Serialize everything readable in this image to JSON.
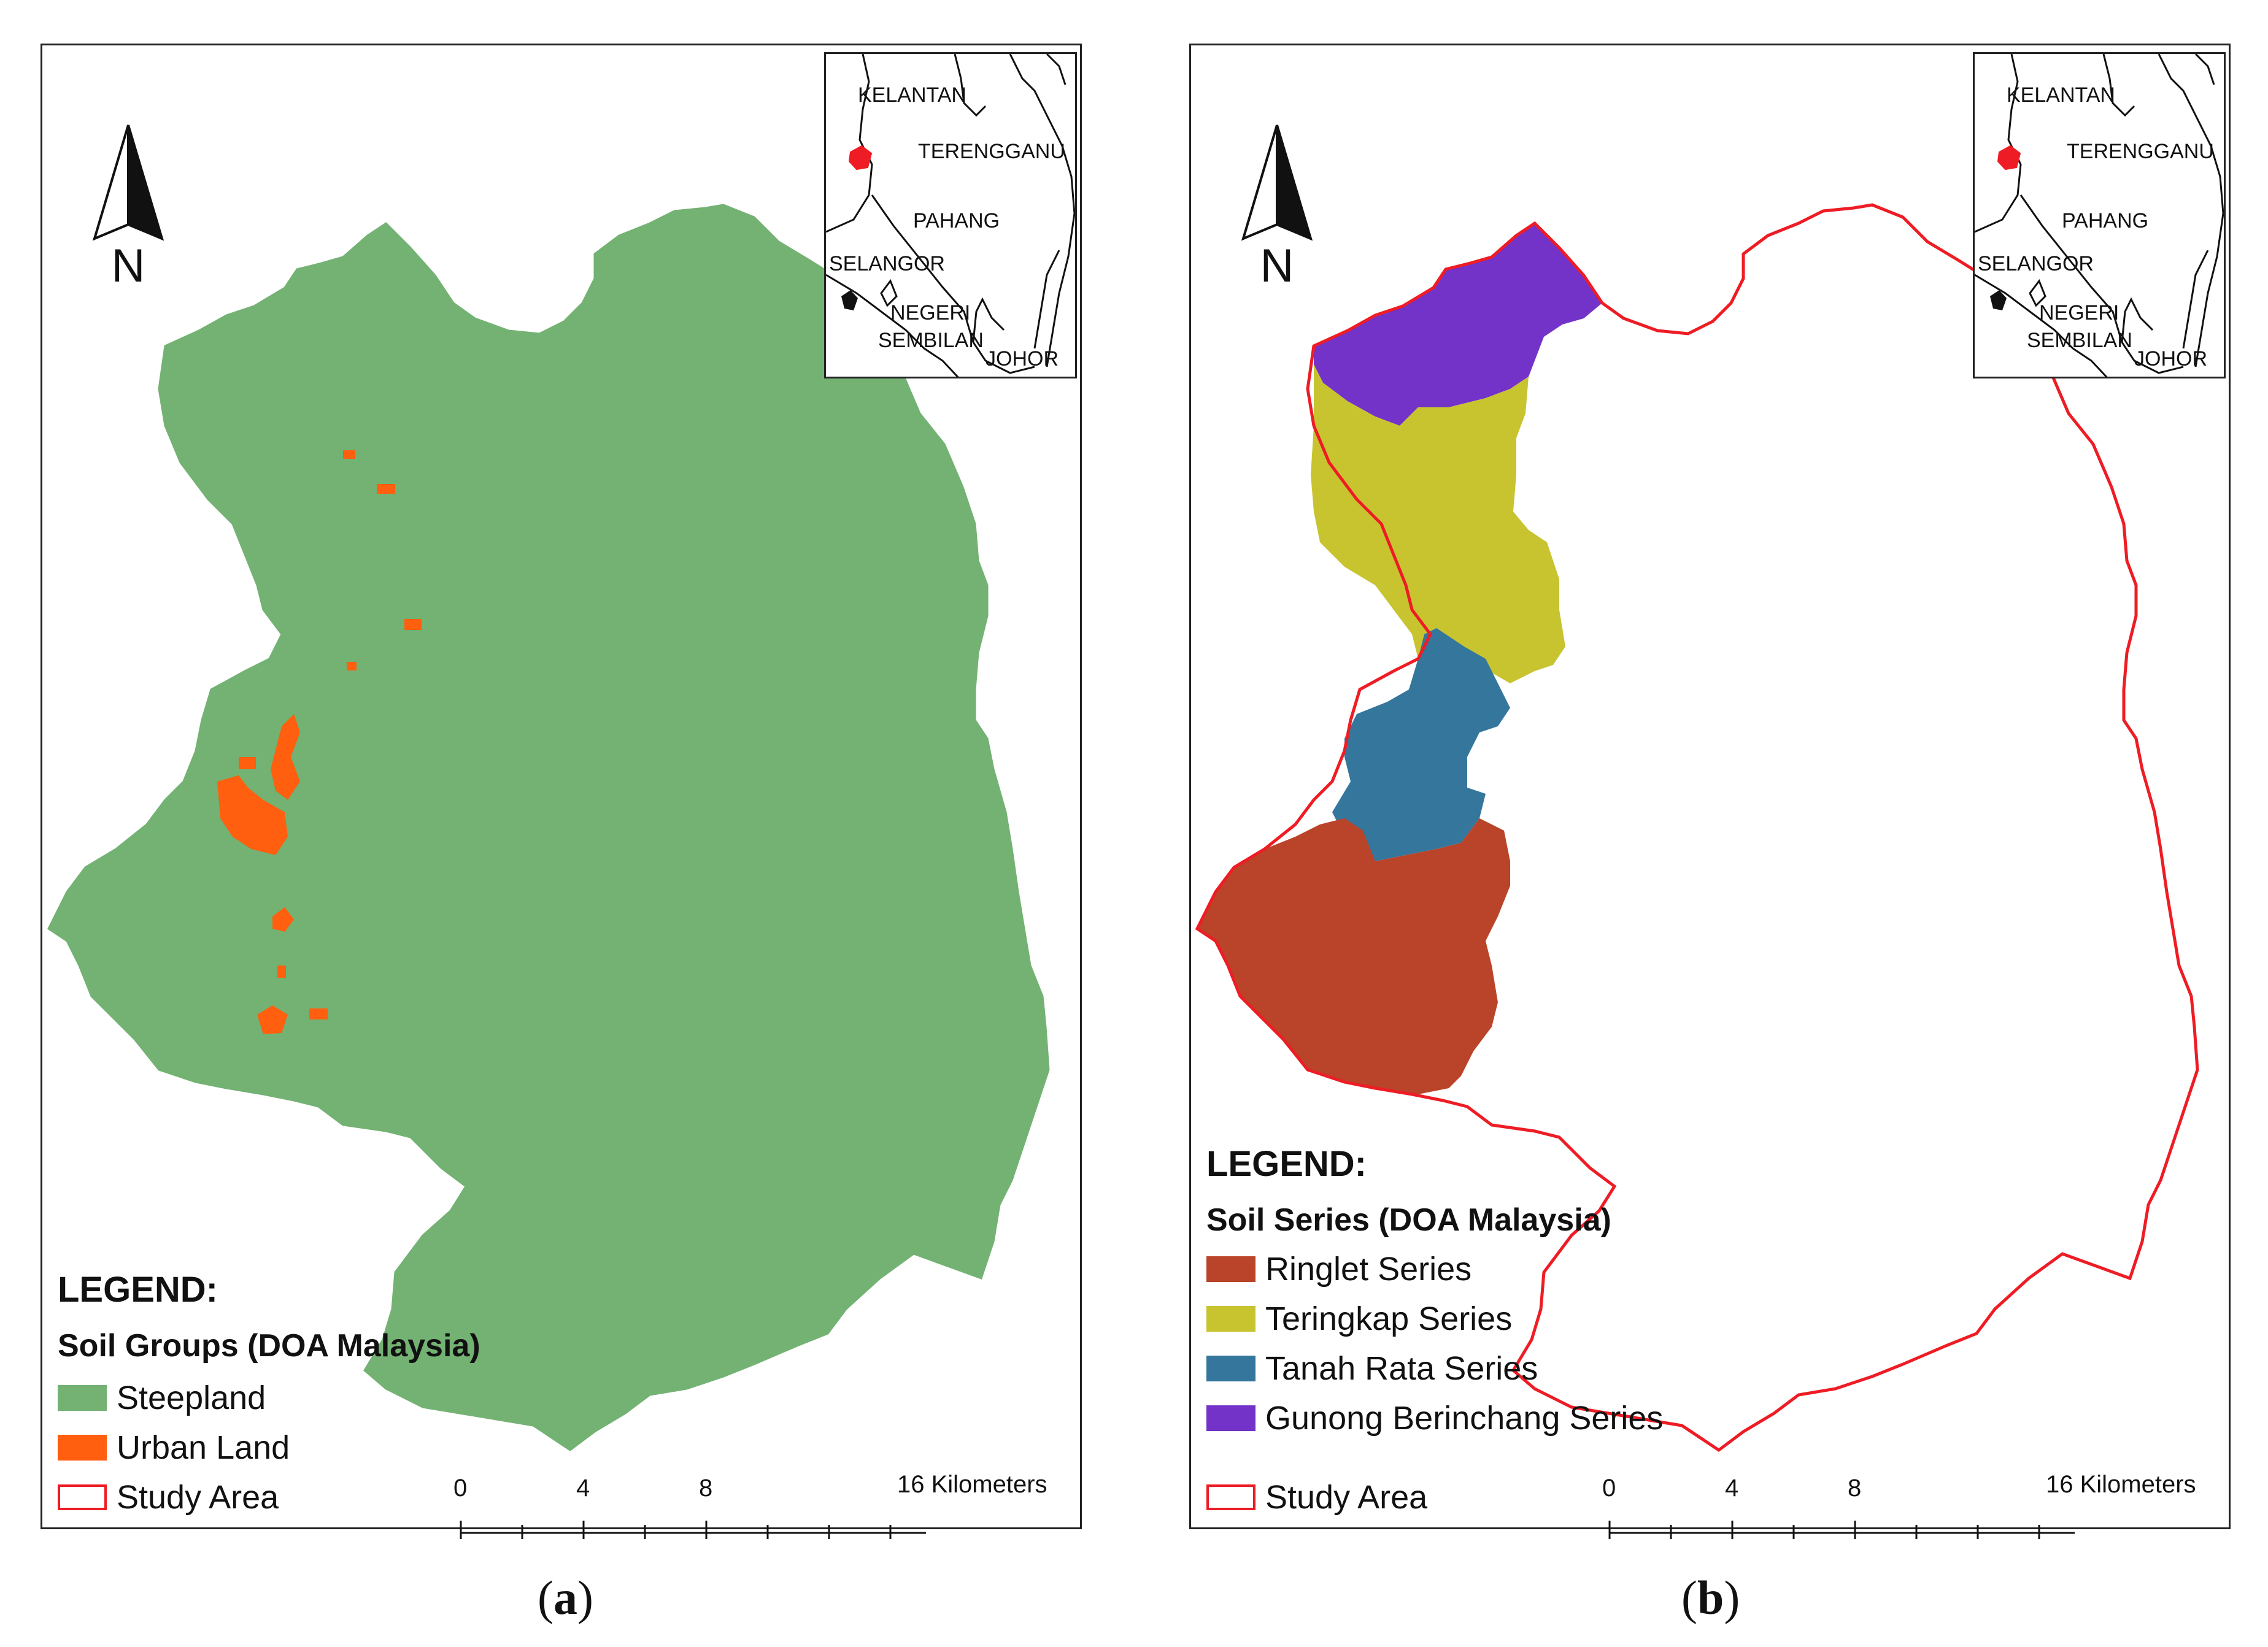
{
  "north_arrow_letter": "N",
  "inset_labels": {
    "kelantan": "KELANTAN",
    "terengganu": "TERENGGANU",
    "pahang": "PAHANG",
    "selangor": "SELANGOR",
    "negeri": "NEGERI",
    "sembilan": "SEMBILAN",
    "johor": "JOHOR"
  },
  "panel_a": {
    "legend_title": "LEGEND:",
    "legend_subtitle": "Soil Groups (DOA Malaysia)",
    "items": [
      {
        "label": "Steepland",
        "color": "#73b273"
      },
      {
        "label": "Urban Land",
        "color": "#ff5f0f"
      },
      {
        "label": "Study Area",
        "color": "#ee1c24"
      }
    ],
    "caption_letter": "a"
  },
  "panel_b": {
    "legend_title": "LEGEND:",
    "legend_subtitle": "Soil Series (DOA Malaysia)",
    "items": [
      {
        "label": "Ringlet Series",
        "color": "#b94429"
      },
      {
        "label": "Teringkap Series",
        "color": "#c7c430"
      },
      {
        "label": "Tanah Rata Series",
        "color": "#35769c"
      },
      {
        "label": "Gunong Berinchang Series",
        "color": "#7332c8"
      },
      {
        "label": "Study Area",
        "color": "#ee1c24"
      }
    ],
    "caption_letter": "b"
  },
  "scale": {
    "l0": "0",
    "l4": "4",
    "l8": "8",
    "l16": "16 Kilometers"
  }
}
